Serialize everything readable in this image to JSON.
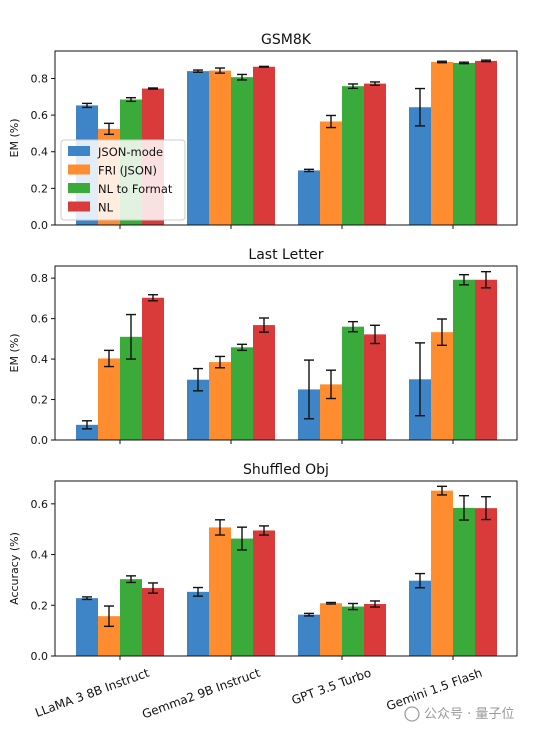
{
  "chart_data": [
    {
      "type": "bar",
      "title": "GSM8K",
      "ylabel": "EM (%)",
      "ylim": [
        0,
        0.95
      ],
      "yticks": [
        "0.0",
        "0.2",
        "0.4",
        "0.6",
        "0.8"
      ],
      "categories": [
        "LLaMA 3 8B Instruct",
        "Gemma2 9B Instruct",
        "GPT 3.5 Turbo",
        "Gemini 1.5 Flash"
      ],
      "legend": "center-left",
      "series": [
        {
          "name": "JSON-mode",
          "color": "#3d85c6",
          "values": [
            0.653,
            0.84,
            0.298,
            0.643
          ],
          "err": [
            0.011,
            0.006,
            0.006,
            0.102
          ]
        },
        {
          "name": "FRI (JSON)",
          "color": "#ff8c2e",
          "values": [
            0.525,
            0.843,
            0.565,
            0.89
          ],
          "err": [
            0.03,
            0.014,
            0.033,
            0.004
          ]
        },
        {
          "name": "NL to Format",
          "color": "#3aaa3a",
          "values": [
            0.685,
            0.807,
            0.758,
            0.885
          ],
          "err": [
            0.01,
            0.015,
            0.012,
            0.004
          ]
        },
        {
          "name": "NL",
          "color": "#d93b3b",
          "values": [
            0.745,
            0.864,
            0.772,
            0.896
          ],
          "err": [
            0.003,
            0.002,
            0.009,
            0.004
          ]
        }
      ]
    },
    {
      "type": "bar",
      "title": "Last Letter",
      "ylabel": "EM (%)",
      "ylim": [
        0,
        0.86
      ],
      "yticks": [
        "0.0",
        "0.2",
        "0.4",
        "0.6",
        "0.8"
      ],
      "categories": [
        "LLaMA 3 8B Instruct",
        "Gemma2 9B Instruct",
        "GPT 3.5 Turbo",
        "Gemini 1.5 Flash"
      ],
      "series": [
        {
          "name": "JSON-mode",
          "color": "#3d85c6",
          "values": [
            0.075,
            0.298,
            0.25,
            0.3
          ],
          "err": [
            0.02,
            0.055,
            0.145,
            0.18
          ]
        },
        {
          "name": "FRI (JSON)",
          "color": "#ff8c2e",
          "values": [
            0.403,
            0.385,
            0.275,
            0.533
          ],
          "err": [
            0.04,
            0.028,
            0.07,
            0.065
          ]
        },
        {
          "name": "NL to Format",
          "color": "#3aaa3a",
          "values": [
            0.51,
            0.458,
            0.56,
            0.792
          ],
          "err": [
            0.11,
            0.015,
            0.025,
            0.025
          ]
        },
        {
          "name": "NL",
          "color": "#d93b3b",
          "values": [
            0.703,
            0.568,
            0.522,
            0.792
          ],
          "err": [
            0.015,
            0.035,
            0.045,
            0.04
          ]
        }
      ]
    },
    {
      "type": "bar",
      "title": "Shuffled Obj",
      "ylabel": "Accuracy (%)",
      "ylim": [
        0,
        0.69
      ],
      "yticks": [
        "0.0",
        "0.2",
        "0.4",
        "0.6"
      ],
      "categories": [
        "LLaMA 3 8B Instruct",
        "Gemma2 9B Instruct",
        "GPT 3.5 Turbo",
        "Gemini 1.5 Flash"
      ],
      "series": [
        {
          "name": "JSON-mode",
          "color": "#3d85c6",
          "values": [
            0.228,
            0.253,
            0.163,
            0.297
          ],
          "err": [
            0.005,
            0.017,
            0.005,
            0.028
          ]
        },
        {
          "name": "FRI (JSON)",
          "color": "#ff8c2e",
          "values": [
            0.157,
            0.507,
            0.208,
            0.652
          ],
          "err": [
            0.04,
            0.03,
            0.003,
            0.017
          ]
        },
        {
          "name": "NL to Format",
          "color": "#3aaa3a",
          "values": [
            0.303,
            0.463,
            0.195,
            0.584
          ],
          "err": [
            0.013,
            0.045,
            0.012,
            0.048
          ]
        },
        {
          "name": "NL",
          "color": "#d93b3b",
          "values": [
            0.268,
            0.495,
            0.205,
            0.583
          ],
          "err": [
            0.02,
            0.018,
            0.012,
            0.045
          ]
        }
      ]
    }
  ],
  "watermark": "公众号 · 量子位"
}
